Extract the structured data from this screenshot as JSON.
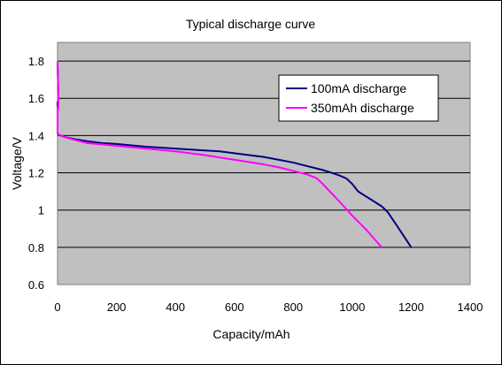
{
  "chart_data": {
    "type": "line",
    "title": "Typical discharge curve",
    "xlabel": "Capacity/mAh",
    "ylabel": "Voltage/V",
    "xlim": [
      0,
      1400
    ],
    "ylim": [
      0.6,
      1.9
    ],
    "xticks": [
      0,
      200,
      400,
      600,
      800,
      1000,
      1200,
      1400
    ],
    "yticks": [
      0.6,
      0.8,
      1,
      1.2,
      1.4,
      1.6,
      1.8
    ],
    "grid": true,
    "plot_background": "#c0c0c0",
    "legend_position": "top-right",
    "series": [
      {
        "name": "100mA discharge",
        "color": "#000080",
        "x": [
          0,
          2,
          3,
          3,
          2,
          1,
          0,
          0,
          0,
          10,
          30,
          60,
          100,
          150,
          200,
          300,
          400,
          500,
          550,
          600,
          650,
          700,
          750,
          800,
          850,
          900,
          950,
          980,
          1000,
          1020,
          1050,
          1080,
          1100,
          1120,
          1150,
          1200
        ],
        "y": [
          1.8,
          1.66,
          1.62,
          1.6,
          1.57,
          1.55,
          1.58,
          1.45,
          1.41,
          1.4,
          1.39,
          1.38,
          1.37,
          1.36,
          1.355,
          1.34,
          1.33,
          1.32,
          1.315,
          1.305,
          1.295,
          1.285,
          1.27,
          1.255,
          1.235,
          1.215,
          1.19,
          1.17,
          1.14,
          1.1,
          1.07,
          1.04,
          1.02,
          0.99,
          0.92,
          0.8
        ]
      },
      {
        "name": "350mAh discharge",
        "color": "#ff00ff",
        "x": [
          0,
          2,
          3,
          2,
          0,
          0,
          10,
          50,
          100,
          200,
          300,
          400,
          500,
          600,
          700,
          750,
          800,
          850,
          880,
          900,
          930,
          960,
          1000,
          1050,
          1100
        ],
        "y": [
          1.8,
          1.66,
          1.6,
          1.54,
          1.55,
          1.41,
          1.4,
          1.38,
          1.36,
          1.345,
          1.33,
          1.315,
          1.295,
          1.27,
          1.245,
          1.23,
          1.21,
          1.19,
          1.17,
          1.14,
          1.09,
          1.04,
          0.97,
          0.89,
          0.8
        ]
      }
    ]
  }
}
